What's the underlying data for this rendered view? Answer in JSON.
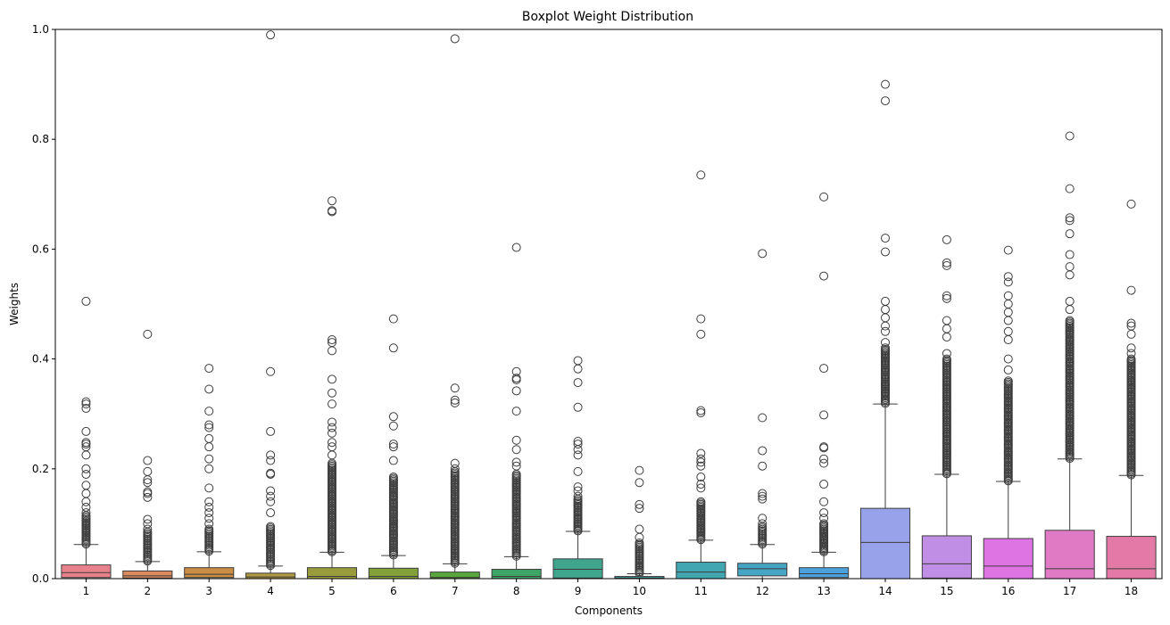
{
  "chart_data": {
    "type": "boxplot",
    "title": "Boxplot Weight Distribution",
    "xlabel": "Components",
    "ylabel": "Weights",
    "ylim": [
      0,
      1.0
    ],
    "yticks": [
      0.0,
      0.2,
      0.4,
      0.6,
      0.8,
      1.0
    ],
    "ytick_labels": [
      "0.0",
      "0.2",
      "0.4",
      "0.6",
      "0.8",
      "1.0"
    ],
    "grid": false,
    "categories": [
      "1",
      "2",
      "3",
      "4",
      "5",
      "6",
      "7",
      "8",
      "9",
      "10",
      "11",
      "12",
      "13",
      "14",
      "15",
      "16",
      "17",
      "18"
    ],
    "boxes": [
      {
        "category": "1",
        "color": "#e8818b",
        "q1": 0.002,
        "median": 0.011,
        "q3": 0.025,
        "whisker_low": 0.0,
        "whisker_high": 0.062,
        "dense_outliers": [
          0.063,
          0.115
        ],
        "outliers": [
          0.12,
          0.13,
          0.14,
          0.155,
          0.17,
          0.19,
          0.2,
          0.225,
          0.24,
          0.245,
          0.248,
          0.268,
          0.31,
          0.318,
          0.322,
          0.505
        ]
      },
      {
        "category": "2",
        "color": "#dc8a5e",
        "q1": 0.001,
        "median": 0.005,
        "q3": 0.014,
        "whisker_low": 0.0,
        "whisker_high": 0.031,
        "dense_outliers": [
          0.032,
          0.085
        ],
        "outliers": [
          0.09,
          0.1,
          0.108,
          0.148,
          0.155,
          0.158,
          0.175,
          0.18,
          0.195,
          0.215,
          0.445
        ]
      },
      {
        "category": "3",
        "color": "#c98d44",
        "q1": 0.002,
        "median": 0.008,
        "q3": 0.02,
        "whisker_low": 0.0,
        "whisker_high": 0.049,
        "dense_outliers": [
          0.05,
          0.09
        ],
        "outliers": [
          0.1,
          0.11,
          0.12,
          0.13,
          0.14,
          0.165,
          0.2,
          0.218,
          0.24,
          0.255,
          0.275,
          0.28,
          0.305,
          0.345,
          0.383
        ]
      },
      {
        "category": "4",
        "color": "#b09a41",
        "q1": 0.0,
        "median": 0.003,
        "q3": 0.01,
        "whisker_low": 0.0,
        "whisker_high": 0.023,
        "dense_outliers": [
          0.024,
          0.095
        ],
        "outliers": [
          0.12,
          0.14,
          0.15,
          0.16,
          0.19,
          0.192,
          0.215,
          0.225,
          0.268,
          0.377,
          0.99
        ]
      },
      {
        "category": "5",
        "color": "#9a9c3c",
        "q1": 0.0,
        "median": 0.004,
        "q3": 0.02,
        "whisker_low": 0.0,
        "whisker_high": 0.048,
        "dense_outliers": [
          0.049,
          0.21
        ],
        "outliers": [
          0.225,
          0.24,
          0.248,
          0.265,
          0.275,
          0.285,
          0.318,
          0.338,
          0.363,
          0.415,
          0.43,
          0.435,
          0.668,
          0.67,
          0.688
        ]
      },
      {
        "category": "6",
        "color": "#82a03a",
        "q1": 0.0,
        "median": 0.004,
        "q3": 0.019,
        "whisker_low": 0.0,
        "whisker_high": 0.042,
        "dense_outliers": [
          0.043,
          0.185
        ],
        "outliers": [
          0.215,
          0.24,
          0.245,
          0.278,
          0.295,
          0.42,
          0.473
        ]
      },
      {
        "category": "7",
        "color": "#5aa63e",
        "q1": 0.0,
        "median": 0.002,
        "q3": 0.012,
        "whisker_low": 0.0,
        "whisker_high": 0.027,
        "dense_outliers": [
          0.028,
          0.195
        ],
        "outliers": [
          0.2,
          0.21,
          0.32,
          0.325,
          0.347,
          0.983
        ]
      },
      {
        "category": "8",
        "color": "#3ea567",
        "q1": 0.0,
        "median": 0.004,
        "q3": 0.017,
        "whisker_low": 0.0,
        "whisker_high": 0.04,
        "dense_outliers": [
          0.041,
          0.19
        ],
        "outliers": [
          0.205,
          0.212,
          0.235,
          0.252,
          0.305,
          0.342,
          0.362,
          0.365,
          0.377,
          0.603
        ]
      },
      {
        "category": "9",
        "color": "#3fa58d",
        "q1": 0.001,
        "median": 0.017,
        "q3": 0.036,
        "whisker_low": 0.0,
        "whisker_high": 0.086,
        "dense_outliers": [
          0.087,
          0.145
        ],
        "outliers": [
          0.15,
          0.16,
          0.167,
          0.195,
          0.225,
          0.235,
          0.245,
          0.25,
          0.312,
          0.357,
          0.382,
          0.397
        ]
      },
      {
        "category": "10",
        "color": "#40a69f",
        "q1": 0.0,
        "median": 0.001,
        "q3": 0.004,
        "whisker_low": 0.0,
        "whisker_high": 0.009,
        "dense_outliers": [
          0.01,
          0.065
        ],
        "outliers": [
          0.075,
          0.09,
          0.128,
          0.135,
          0.175,
          0.197
        ]
      },
      {
        "category": "11",
        "color": "#41a6b0",
        "q1": 0.0,
        "median": 0.012,
        "q3": 0.03,
        "whisker_low": 0.0,
        "whisker_high": 0.07,
        "dense_outliers": [
          0.071,
          0.14
        ],
        "outliers": [
          0.165,
          0.172,
          0.185,
          0.205,
          0.212,
          0.218,
          0.228,
          0.302,
          0.306,
          0.445,
          0.473,
          0.735
        ]
      },
      {
        "category": "12",
        "color": "#44a5c4",
        "q1": 0.005,
        "median": 0.018,
        "q3": 0.028,
        "whisker_low": 0.0,
        "whisker_high": 0.062,
        "dense_outliers": [
          0.063,
          0.095
        ],
        "outliers": [
          0.1,
          0.11,
          0.145,
          0.15,
          0.155,
          0.205,
          0.233,
          0.293,
          0.592
        ]
      },
      {
        "category": "13",
        "color": "#4aa1dc",
        "q1": 0.002,
        "median": 0.009,
        "q3": 0.02,
        "whisker_low": 0.0,
        "whisker_high": 0.048,
        "dense_outliers": [
          0.049,
          0.1
        ],
        "outliers": [
          0.11,
          0.12,
          0.14,
          0.172,
          0.21,
          0.218,
          0.238,
          0.24,
          0.298,
          0.383,
          0.551,
          0.695
        ]
      },
      {
        "category": "14",
        "color": "#97a2ea",
        "q1": 0.0,
        "median": 0.066,
        "q3": 0.128,
        "whisker_low": 0.0,
        "whisker_high": 0.318,
        "dense_outliers": [
          0.319,
          0.42
        ],
        "outliers": [
          0.43,
          0.45,
          0.46,
          0.475,
          0.49,
          0.505,
          0.595,
          0.62,
          0.87,
          0.9
        ]
      },
      {
        "category": "15",
        "color": "#c08ee5",
        "q1": 0.001,
        "median": 0.027,
        "q3": 0.078,
        "whisker_low": 0.0,
        "whisker_high": 0.19,
        "dense_outliers": [
          0.191,
          0.4
        ],
        "outliers": [
          0.41,
          0.44,
          0.455,
          0.47,
          0.51,
          0.515,
          0.57,
          0.575,
          0.617
        ]
      },
      {
        "category": "16",
        "color": "#de73e3",
        "q1": 0.0,
        "median": 0.023,
        "q3": 0.073,
        "whisker_low": 0.0,
        "whisker_high": 0.177,
        "dense_outliers": [
          0.178,
          0.36
        ],
        "outliers": [
          0.38,
          0.4,
          0.435,
          0.45,
          0.47,
          0.485,
          0.5,
          0.515,
          0.54,
          0.55,
          0.598
        ]
      },
      {
        "category": "17",
        "color": "#e17ac4",
        "q1": 0.0,
        "median": 0.018,
        "q3": 0.088,
        "whisker_low": 0.0,
        "whisker_high": 0.218,
        "dense_outliers": [
          0.219,
          0.47
        ],
        "outliers": [
          0.49,
          0.505,
          0.553,
          0.568,
          0.59,
          0.628,
          0.652,
          0.657,
          0.71,
          0.806
        ]
      },
      {
        "category": "18",
        "color": "#e37aa6",
        "q1": 0.0,
        "median": 0.018,
        "q3": 0.077,
        "whisker_low": 0.0,
        "whisker_high": 0.188,
        "dense_outliers": [
          0.189,
          0.4
        ],
        "outliers": [
          0.41,
          0.42,
          0.445,
          0.46,
          0.465,
          0.525,
          0.682
        ]
      }
    ]
  }
}
